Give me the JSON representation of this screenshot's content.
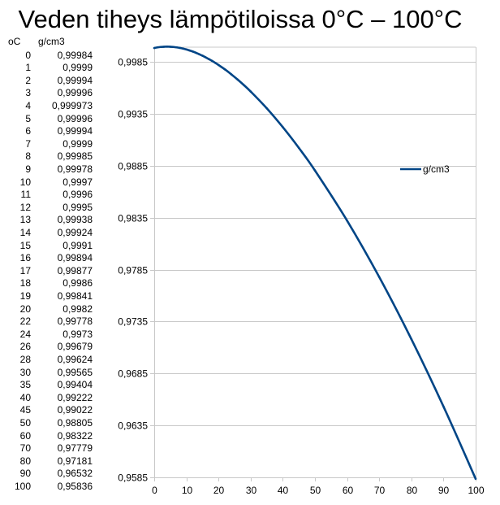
{
  "chart_data": {
    "type": "line",
    "title": "Veden tiheys lämpötiloissa 0°C – 100°C",
    "table_headers": [
      "oC",
      "g/cm3"
    ],
    "table_rows": [
      [
        "0",
        "0,99984"
      ],
      [
        "1",
        "0,9999"
      ],
      [
        "2",
        "0,99994"
      ],
      [
        "3",
        "0,99996"
      ],
      [
        "4",
        "0,999973"
      ],
      [
        "5",
        "0,99996"
      ],
      [
        "6",
        "0,99994"
      ],
      [
        "7",
        "0,9999"
      ],
      [
        "8",
        "0,99985"
      ],
      [
        "9",
        "0,99978"
      ],
      [
        "10",
        "0,9997"
      ],
      [
        "11",
        "0,9996"
      ],
      [
        "12",
        "0,9995"
      ],
      [
        "13",
        "0,99938"
      ],
      [
        "14",
        "0,99924"
      ],
      [
        "15",
        "0,9991"
      ],
      [
        "16",
        "0,99894"
      ],
      [
        "17",
        "0,99877"
      ],
      [
        "18",
        "0,9986"
      ],
      [
        "19",
        "0,99841"
      ],
      [
        "20",
        "0,9982"
      ],
      [
        "22",
        "0,99778"
      ],
      [
        "24",
        "0,9973"
      ],
      [
        "26",
        "0,99679"
      ],
      [
        "28",
        "0,99624"
      ],
      [
        "30",
        "0,99565"
      ],
      [
        "35",
        "0,99404"
      ],
      [
        "40",
        "0,99222"
      ],
      [
        "45",
        "0,99022"
      ],
      [
        "50",
        "0,98805"
      ],
      [
        "60",
        "0,98322"
      ],
      [
        "70",
        "0,97779"
      ],
      [
        "80",
        "0,97181"
      ],
      [
        "90",
        "0,96532"
      ],
      [
        "100",
        "0,95836"
      ]
    ],
    "x": [
      0,
      1,
      2,
      3,
      4,
      5,
      6,
      7,
      8,
      9,
      10,
      11,
      12,
      13,
      14,
      15,
      16,
      17,
      18,
      19,
      20,
      22,
      24,
      26,
      28,
      30,
      35,
      40,
      45,
      50,
      60,
      70,
      80,
      90,
      100
    ],
    "series": [
      {
        "name": "g/cm3",
        "color": "#004586",
        "values": [
          0.99984,
          0.9999,
          0.99994,
          0.99996,
          0.999973,
          0.99996,
          0.99994,
          0.9999,
          0.99985,
          0.99978,
          0.9997,
          0.9996,
          0.9995,
          0.99938,
          0.99924,
          0.9991,
          0.99894,
          0.99877,
          0.9986,
          0.99841,
          0.9982,
          0.99778,
          0.9973,
          0.99679,
          0.99624,
          0.99565,
          0.99404,
          0.99222,
          0.99022,
          0.98805,
          0.98322,
          0.97779,
          0.97181,
          0.96532,
          0.95836
        ]
      }
    ],
    "xlim": [
      0,
      100
    ],
    "ylim": [
      0.9585,
      0.99992
    ],
    "xticks": [
      0,
      10,
      20,
      30,
      40,
      50,
      60,
      70,
      80,
      90,
      100
    ],
    "yticks": [
      0.9585,
      0.9635,
      0.9685,
      0.9735,
      0.9785,
      0.9835,
      0.9885,
      0.9935,
      0.9985
    ],
    "ytick_labels": [
      "0,9585",
      "0,9635",
      "0,9685",
      "0,9735",
      "0,9785",
      "0,9835",
      "0,9885",
      "0,9935",
      "0,9985"
    ],
    "grid": true,
    "legend": "right",
    "xlabel": "",
    "ylabel": ""
  }
}
